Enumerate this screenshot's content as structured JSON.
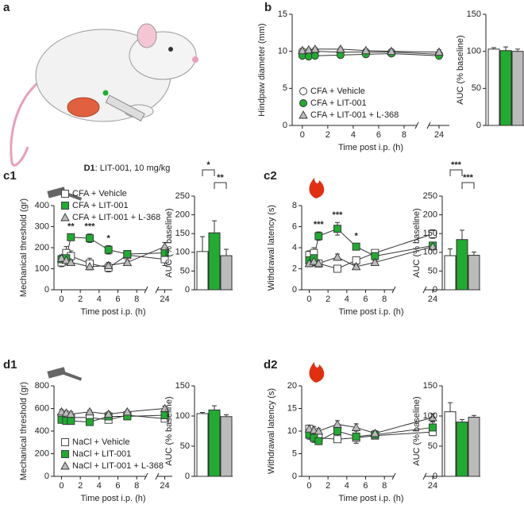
{
  "panel_a": {
    "label": "a",
    "caption_bold": "D1",
    "caption": ": LIT-001, 10 mg/kg"
  },
  "chart_data": [
    {
      "type": "line",
      "panel_label": "b",
      "ylabel": "Hindpaw diameter (mm)",
      "xlabel": "Time post i.p. (h)",
      "x": [
        0,
        0.5,
        1,
        3,
        5,
        7,
        24
      ],
      "xlim": [
        -0.8,
        24.8
      ],
      "x_break": [
        9,
        23.2
      ],
      "xticks": [
        0,
        2,
        4,
        6,
        8,
        24
      ],
      "ylim": [
        0,
        15
      ],
      "yticks": [
        0,
        5,
        10,
        15
      ],
      "legend": "lower left",
      "series": [
        {
          "name": "CFA + Vehicle",
          "color": "#ffffff",
          "marker": "circle",
          "values": [
            10.0,
            9.9,
            10.0,
            9.9,
            9.9,
            9.9,
            9.6
          ],
          "errors": [
            0.2,
            0.2,
            0.2,
            0.2,
            0.2,
            0.2,
            0.3
          ]
        },
        {
          "name": "CFA + LIT-001",
          "color": "#22aa33",
          "marker": "circle",
          "values": [
            9.4,
            9.3,
            9.4,
            9.5,
            9.6,
            9.7,
            9.4
          ],
          "errors": [
            0.2,
            0.2,
            0.2,
            0.2,
            0.2,
            0.2,
            0.3
          ]
        },
        {
          "name": "CFA + LIT-001 + L-368",
          "color": "#bbbbbb",
          "marker": "triangle",
          "values": [
            10.1,
            10.2,
            10.3,
            10.3,
            10.1,
            10.0,
            9.9
          ],
          "errors": [
            0.2,
            0.2,
            0.2,
            0.2,
            0.2,
            0.2,
            0.3
          ]
        }
      ]
    },
    {
      "type": "bar",
      "ylabel": "AUC (% baseline)",
      "ylim": [
        0,
        150
      ],
      "yticks": [
        0,
        50,
        100,
        150
      ],
      "values": [
        103,
        101,
        100
      ],
      "errors": [
        2,
        5,
        3
      ],
      "colors": [
        "#ffffff",
        "#22aa33",
        "#bbbbbb"
      ]
    },
    {
      "type": "line",
      "panel_label": "c1",
      "ylabel": "Mechanical threshold (gr)",
      "xlabel": "Time post i.p. (h)",
      "x": [
        0,
        0.5,
        1,
        3,
        5,
        7,
        24
      ],
      "xlim": [
        -0.8,
        24.8
      ],
      "x_break": [
        9,
        23.2
      ],
      "xticks": [
        0,
        2,
        4,
        6,
        8,
        24
      ],
      "ylim": [
        0,
        400
      ],
      "yticks": [
        0,
        100,
        200,
        300,
        400
      ],
      "legend": "upper left",
      "series": [
        {
          "name": "CFA + Vehicle",
          "color": "#ffffff",
          "marker": "square",
          "values": [
            130,
            175,
            160,
            125,
            105,
            165,
            145
          ],
          "errors": [
            20,
            30,
            25,
            25,
            20,
            15,
            30
          ]
        },
        {
          "name": "CFA + LIT-001",
          "color": "#22aa33",
          "marker": "square",
          "values": [
            145,
            150,
            250,
            245,
            190,
            170,
            175
          ],
          "errors": [
            20,
            20,
            15,
            20,
            20,
            15,
            25
          ],
          "sig": [
            null,
            null,
            "**",
            "***",
            "*",
            null,
            null
          ]
        },
        {
          "name": "CFA + LIT-001 + L-368",
          "color": "#bbbbbb",
          "marker": "triangle",
          "values": [
            150,
            140,
            130,
            110,
            115,
            130,
            205
          ],
          "errors": [
            15,
            20,
            10,
            15,
            15,
            10,
            20
          ]
        }
      ]
    },
    {
      "type": "bar",
      "ylabel": "AUC (% baseline)",
      "ylim": [
        0,
        250
      ],
      "yticks": [
        0,
        50,
        100,
        150,
        200,
        250
      ],
      "values": [
        102,
        152,
        91
      ],
      "errors": [
        40,
        32,
        17
      ],
      "colors": [
        "#ffffff",
        "#22aa33",
        "#bbbbbb"
      ],
      "comparisons": [
        {
          "pair": [
            0,
            1
          ],
          "label": "*"
        },
        {
          "pair": [
            1,
            2
          ],
          "label": "**"
        }
      ]
    },
    {
      "type": "line",
      "panel_label": "c2",
      "ylabel": "Withdrawal latency (s)",
      "xlabel": "Time post i.p. (h)",
      "x": [
        0,
        0.5,
        1,
        3,
        5,
        7,
        24
      ],
      "xlim": [
        -0.8,
        24.8
      ],
      "x_break": [
        9,
        23.2
      ],
      "xticks": [
        0,
        2,
        4,
        6,
        8,
        24
      ],
      "ylim": [
        0,
        8
      ],
      "yticks": [
        0,
        2,
        4,
        6,
        8
      ],
      "series": [
        {
          "color": "#ffffff",
          "marker": "square",
          "values": [
            3.3,
            3.5,
            2.5,
            2.0,
            2.8,
            3.5,
            5.3
          ],
          "errors": [
            0.4,
            0.5,
            0.3,
            0.2,
            0.3,
            0.3,
            0.4
          ]
        },
        {
          "color": "#22aa33",
          "marker": "square",
          "values": [
            2.8,
            3.0,
            5.1,
            5.8,
            4.1,
            3.2,
            4.2
          ],
          "errors": [
            0.4,
            0.5,
            0.4,
            0.6,
            0.3,
            0.3,
            0.3
          ],
          "sig": [
            null,
            null,
            "***",
            "***",
            "*",
            null,
            null
          ]
        },
        {
          "color": "#bbbbbb",
          "marker": "triangle",
          "values": [
            2.5,
            2.7,
            2.5,
            3.1,
            2.2,
            2.6,
            4.1
          ],
          "errors": [
            0.3,
            0.4,
            0.2,
            0.3,
            0.2,
            0.2,
            0.3
          ]
        }
      ]
    },
    {
      "type": "bar",
      "ylabel": "AUC (% baseline)",
      "ylim": [
        0,
        250
      ],
      "yticks": [
        0,
        50,
        100,
        150,
        200,
        250
      ],
      "values": [
        91,
        134,
        92
      ],
      "errors": [
        18,
        25,
        9
      ],
      "colors": [
        "#ffffff",
        "#22aa33",
        "#bbbbbb"
      ],
      "comparisons": [
        {
          "pair": [
            0,
            1
          ],
          "label": "***"
        },
        {
          "pair": [
            1,
            2
          ],
          "label": "***"
        }
      ]
    },
    {
      "type": "line",
      "panel_label": "d1",
      "ylabel": "Mechanical threshold (gr)",
      "xlabel": "Time post i.p. (h)",
      "x": [
        0,
        0.5,
        1,
        3,
        5,
        7,
        24
      ],
      "xlim": [
        -0.8,
        24.8
      ],
      "x_break": [
        9,
        23.2
      ],
      "xticks": [
        0,
        2,
        4,
        6,
        8,
        24
      ],
      "ylim": [
        0,
        800
      ],
      "yticks": [
        0,
        200,
        400,
        600,
        800
      ],
      "legend": "lower left",
      "series": [
        {
          "name": "NaCl + Vehicle",
          "color": "#ffffff",
          "marker": "square",
          "values": [
            520,
            510,
            520,
            520,
            500,
            540,
            510
          ],
          "errors": [
            20,
            20,
            20,
            20,
            25,
            20,
            20
          ]
        },
        {
          "name": "NaCl + LIT-001",
          "color": "#22aa33",
          "marker": "square",
          "values": [
            500,
            490,
            490,
            480,
            530,
            530,
            540
          ],
          "errors": [
            25,
            20,
            20,
            20,
            25,
            20,
            25
          ]
        },
        {
          "name": "NaCl + LIT-001 + L-368",
          "color": "#bbbbbb",
          "marker": "triangle",
          "values": [
            570,
            560,
            550,
            570,
            550,
            570,
            600
          ],
          "errors": [
            20,
            20,
            20,
            15,
            20,
            15,
            20
          ]
        }
      ]
    },
    {
      "type": "bar",
      "ylabel": "AUC (% baseline)",
      "ylim": [
        0,
        150
      ],
      "yticks": [
        0,
        50,
        100,
        150
      ],
      "values": [
        104,
        110,
        99
      ],
      "errors": [
        2,
        7,
        3
      ],
      "colors": [
        "#ffffff",
        "#22aa33",
        "#bbbbbb"
      ]
    },
    {
      "type": "line",
      "panel_label": "d2",
      "ylabel": "Withdrawal latency (s)",
      "xlabel": "Time post i.p. (h)",
      "x": [
        0,
        0.5,
        1,
        3,
        5,
        7,
        24
      ],
      "xlim": [
        -0.8,
        24.8
      ],
      "x_break": [
        9,
        23.2
      ],
      "xticks": [
        0,
        2,
        4,
        6,
        8,
        24
      ],
      "ylim": [
        0,
        20
      ],
      "yticks": [
        0,
        5,
        10,
        15,
        20
      ],
      "series": [
        {
          "color": "#ffffff",
          "marker": "square",
          "values": [
            10.5,
            8.5,
            8.5,
            8.2,
            8.5,
            9.0,
            9.8
          ],
          "errors": [
            0.8,
            0.8,
            0.6,
            0.6,
            0.8,
            0.6,
            0.8
          ]
        },
        {
          "color": "#22aa33",
          "marker": "square",
          "values": [
            9.2,
            8.5,
            7.8,
            10.0,
            8.8,
            9.2,
            10.8
          ],
          "errors": [
            1.0,
            1.0,
            0.8,
            1.5,
            1.5,
            0.6,
            1.2
          ]
        },
        {
          "color": "#bbbbbb",
          "marker": "triangle",
          "values": [
            10.5,
            10.2,
            10.0,
            11.5,
            10.8,
            9.5,
            13.0
          ],
          "errors": [
            0.8,
            0.8,
            0.6,
            0.8,
            0.8,
            0.6,
            0.8
          ]
        }
      ]
    },
    {
      "type": "bar",
      "ylabel": "AUC (% baseline)",
      "ylim": [
        0,
        150
      ],
      "yticks": [
        0,
        50,
        100,
        150
      ],
      "values": [
        107,
        90,
        98
      ],
      "errors": [
        15,
        4,
        3
      ],
      "colors": [
        "#ffffff",
        "#22aa33",
        "#bbbbbb"
      ]
    }
  ]
}
